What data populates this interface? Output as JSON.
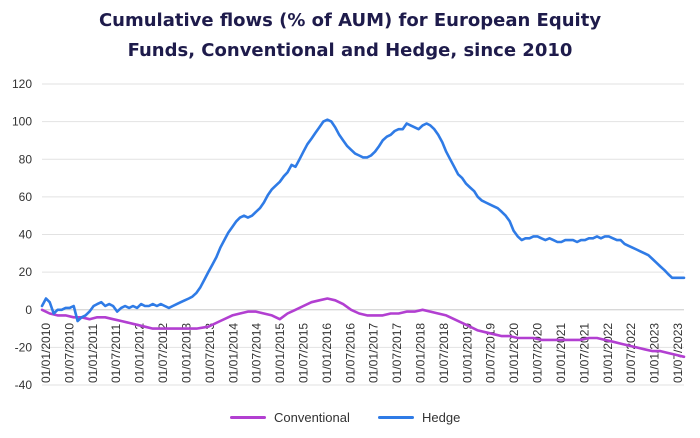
{
  "chart_data": {
    "type": "line",
    "title": [
      "Cumulative flows (% of AUM) for European Equity",
      "Funds, Conventional and Hedge, since 2010"
    ],
    "xlabel": "",
    "ylabel": "",
    "ylim": [
      -40,
      120
    ],
    "yticks": [
      -40,
      -20,
      0,
      20,
      40,
      60,
      80,
      100,
      120
    ],
    "grid": "horizontal",
    "legend_position": "bottom",
    "x_tick_labels": [
      "01/01/2010",
      "01/07/2010",
      "01/01/2011",
      "01/07/2011",
      "01/01/2012",
      "01/07/2012",
      "01/01/2013",
      "01/07/2013",
      "01/01/2014",
      "01/07/2014",
      "01/01/2015",
      "01/07/2015",
      "01/01/2016",
      "01/07/2016",
      "01/01/2017",
      "01/07/2017",
      "01/01/2018",
      "01/07/2018",
      "01/01/2019",
      "01/07/2019",
      "01/01/2020",
      "01/07/2020",
      "01/01/2021",
      "01/07/2021",
      "01/01/2022",
      "01/07/2022",
      "01/01/2023",
      "01/07/2023"
    ],
    "series": [
      {
        "name": "Conventional",
        "color": "#b23fd1",
        "points": [
          [
            "2010-01-01",
            0
          ],
          [
            "2010-03-01",
            -2
          ],
          [
            "2010-05-01",
            -3
          ],
          [
            "2010-07-01",
            -3
          ],
          [
            "2010-09-01",
            -4
          ],
          [
            "2010-11-01",
            -4
          ],
          [
            "2011-01-01",
            -5
          ],
          [
            "2011-03-01",
            -4
          ],
          [
            "2011-05-01",
            -4
          ],
          [
            "2011-07-01",
            -5
          ],
          [
            "2011-09-01",
            -6
          ],
          [
            "2011-11-01",
            -7
          ],
          [
            "2012-01-01",
            -8
          ],
          [
            "2012-03-01",
            -9
          ],
          [
            "2012-05-01",
            -10
          ],
          [
            "2012-07-01",
            -10
          ],
          [
            "2012-09-01",
            -10
          ],
          [
            "2012-11-01",
            -10
          ],
          [
            "2013-01-01",
            -10
          ],
          [
            "2013-04-01",
            -10
          ],
          [
            "2013-07-01",
            -9
          ],
          [
            "2013-10-01",
            -6
          ],
          [
            "2014-01-01",
            -3
          ],
          [
            "2014-03-01",
            -2
          ],
          [
            "2014-05-01",
            -1
          ],
          [
            "2014-07-01",
            -1
          ],
          [
            "2014-09-01",
            -2
          ],
          [
            "2014-11-01",
            -3
          ],
          [
            "2015-01-01",
            -5
          ],
          [
            "2015-03-01",
            -2
          ],
          [
            "2015-05-01",
            0
          ],
          [
            "2015-07-01",
            2
          ],
          [
            "2015-09-01",
            4
          ],
          [
            "2015-11-01",
            5
          ],
          [
            "2016-01-01",
            6
          ],
          [
            "2016-03-01",
            5
          ],
          [
            "2016-05-01",
            3
          ],
          [
            "2016-07-01",
            0
          ],
          [
            "2016-09-01",
            -2
          ],
          [
            "2016-11-01",
            -3
          ],
          [
            "2017-01-01",
            -3
          ],
          [
            "2017-03-01",
            -3
          ],
          [
            "2017-05-01",
            -2
          ],
          [
            "2017-07-01",
            -2
          ],
          [
            "2017-09-01",
            -1
          ],
          [
            "2017-11-01",
            -1
          ],
          [
            "2018-01-01",
            0
          ],
          [
            "2018-03-01",
            -1
          ],
          [
            "2018-05-01",
            -2
          ],
          [
            "2018-07-01",
            -3
          ],
          [
            "2018-09-01",
            -5
          ],
          [
            "2018-11-01",
            -7
          ],
          [
            "2019-01-01",
            -9
          ],
          [
            "2019-03-01",
            -11
          ],
          [
            "2019-05-01",
            -12
          ],
          [
            "2019-07-01",
            -13
          ],
          [
            "2019-09-01",
            -14
          ],
          [
            "2019-11-01",
            -14
          ],
          [
            "2020-01-01",
            -15
          ],
          [
            "2020-03-01",
            -15
          ],
          [
            "2020-05-01",
            -15
          ],
          [
            "2020-07-01",
            -16
          ],
          [
            "2020-09-01",
            -16
          ],
          [
            "2020-11-01",
            -16
          ],
          [
            "2021-01-01",
            -16
          ],
          [
            "2021-03-01",
            -16
          ],
          [
            "2021-05-01",
            -16
          ],
          [
            "2021-07-01",
            -15
          ],
          [
            "2021-09-01",
            -15
          ],
          [
            "2021-11-01",
            -16
          ],
          [
            "2022-01-01",
            -17
          ],
          [
            "2022-03-01",
            -18
          ],
          [
            "2022-05-01",
            -19
          ],
          [
            "2022-07-01",
            -20
          ],
          [
            "2022-09-01",
            -21
          ],
          [
            "2022-11-01",
            -22
          ],
          [
            "2023-01-01",
            -22
          ],
          [
            "2023-03-01",
            -23
          ],
          [
            "2023-05-01",
            -24
          ],
          [
            "2023-07-01",
            -25
          ]
        ]
      },
      {
        "name": "Hedge",
        "color": "#2f7be6",
        "points": [
          [
            "2010-01-01",
            2
          ],
          [
            "2010-02-01",
            6
          ],
          [
            "2010-03-01",
            4
          ],
          [
            "2010-04-01",
            -2
          ],
          [
            "2010-05-01",
            0
          ],
          [
            "2010-06-01",
            0
          ],
          [
            "2010-07-01",
            1
          ],
          [
            "2010-08-01",
            1
          ],
          [
            "2010-09-01",
            2
          ],
          [
            "2010-10-01",
            -6
          ],
          [
            "2010-11-01",
            -4
          ],
          [
            "2010-12-01",
            -3
          ],
          [
            "2011-01-01",
            -1
          ],
          [
            "2011-02-01",
            2
          ],
          [
            "2011-03-01",
            3
          ],
          [
            "2011-04-01",
            4
          ],
          [
            "2011-05-01",
            2
          ],
          [
            "2011-06-01",
            3
          ],
          [
            "2011-07-01",
            2
          ],
          [
            "2011-08-01",
            -1
          ],
          [
            "2011-09-01",
            1
          ],
          [
            "2011-10-01",
            2
          ],
          [
            "2011-11-01",
            1
          ],
          [
            "2011-12-01",
            2
          ],
          [
            "2012-01-01",
            1
          ],
          [
            "2012-02-01",
            3
          ],
          [
            "2012-03-01",
            2
          ],
          [
            "2012-04-01",
            2
          ],
          [
            "2012-05-01",
            3
          ],
          [
            "2012-06-01",
            2
          ],
          [
            "2012-07-01",
            3
          ],
          [
            "2012-08-01",
            2
          ],
          [
            "2012-09-01",
            1
          ],
          [
            "2012-10-01",
            2
          ],
          [
            "2012-11-01",
            3
          ],
          [
            "2012-12-01",
            4
          ],
          [
            "2013-01-01",
            5
          ],
          [
            "2013-02-01",
            6
          ],
          [
            "2013-03-01",
            7
          ],
          [
            "2013-04-01",
            9
          ],
          [
            "2013-05-01",
            12
          ],
          [
            "2013-06-01",
            16
          ],
          [
            "2013-07-01",
            20
          ],
          [
            "2013-08-01",
            24
          ],
          [
            "2013-09-01",
            28
          ],
          [
            "2013-10-01",
            33
          ],
          [
            "2013-11-01",
            37
          ],
          [
            "2013-12-01",
            41
          ],
          [
            "2014-01-01",
            44
          ],
          [
            "2014-02-01",
            47
          ],
          [
            "2014-03-01",
            49
          ],
          [
            "2014-04-01",
            50
          ],
          [
            "2014-05-01",
            49
          ],
          [
            "2014-06-01",
            50
          ],
          [
            "2014-07-01",
            52
          ],
          [
            "2014-08-01",
            54
          ],
          [
            "2014-09-01",
            57
          ],
          [
            "2014-10-01",
            61
          ],
          [
            "2014-11-01",
            64
          ],
          [
            "2014-12-01",
            66
          ],
          [
            "2015-01-01",
            68
          ],
          [
            "2015-02-01",
            71
          ],
          [
            "2015-03-01",
            73
          ],
          [
            "2015-04-01",
            77
          ],
          [
            "2015-05-01",
            76
          ],
          [
            "2015-06-01",
            80
          ],
          [
            "2015-07-01",
            84
          ],
          [
            "2015-08-01",
            88
          ],
          [
            "2015-09-01",
            91
          ],
          [
            "2015-10-01",
            94
          ],
          [
            "2015-11-01",
            97
          ],
          [
            "2015-12-01",
            100
          ],
          [
            "2016-01-01",
            101
          ],
          [
            "2016-02-01",
            100
          ],
          [
            "2016-03-01",
            97
          ],
          [
            "2016-04-01",
            93
          ],
          [
            "2016-05-01",
            90
          ],
          [
            "2016-06-01",
            87
          ],
          [
            "2016-07-01",
            85
          ],
          [
            "2016-08-01",
            83
          ],
          [
            "2016-09-01",
            82
          ],
          [
            "2016-10-01",
            81
          ],
          [
            "2016-11-01",
            81
          ],
          [
            "2016-12-01",
            82
          ],
          [
            "2017-01-01",
            84
          ],
          [
            "2017-02-01",
            87
          ],
          [
            "2017-03-01",
            90
          ],
          [
            "2017-04-01",
            92
          ],
          [
            "2017-05-01",
            93
          ],
          [
            "2017-06-01",
            95
          ],
          [
            "2017-07-01",
            96
          ],
          [
            "2017-08-01",
            96
          ],
          [
            "2017-09-01",
            99
          ],
          [
            "2017-10-01",
            98
          ],
          [
            "2017-11-01",
            97
          ],
          [
            "2017-12-01",
            96
          ],
          [
            "2018-01-01",
            98
          ],
          [
            "2018-02-01",
            99
          ],
          [
            "2018-03-01",
            98
          ],
          [
            "2018-04-01",
            96
          ],
          [
            "2018-05-01",
            93
          ],
          [
            "2018-06-01",
            89
          ],
          [
            "2018-07-01",
            84
          ],
          [
            "2018-08-01",
            80
          ],
          [
            "2018-09-01",
            76
          ],
          [
            "2018-10-01",
            72
          ],
          [
            "2018-11-01",
            70
          ],
          [
            "2018-12-01",
            67
          ],
          [
            "2019-01-01",
            65
          ],
          [
            "2019-02-01",
            63
          ],
          [
            "2019-03-01",
            60
          ],
          [
            "2019-04-01",
            58
          ],
          [
            "2019-05-01",
            57
          ],
          [
            "2019-06-01",
            56
          ],
          [
            "2019-07-01",
            55
          ],
          [
            "2019-08-01",
            54
          ],
          [
            "2019-09-01",
            52
          ],
          [
            "2019-10-01",
            50
          ],
          [
            "2019-11-01",
            47
          ],
          [
            "2019-12-01",
            42
          ],
          [
            "2020-01-01",
            39
          ],
          [
            "2020-02-01",
            37
          ],
          [
            "2020-03-01",
            38
          ],
          [
            "2020-04-01",
            38
          ],
          [
            "2020-05-01",
            39
          ],
          [
            "2020-06-01",
            39
          ],
          [
            "2020-07-01",
            38
          ],
          [
            "2020-08-01",
            37
          ],
          [
            "2020-09-01",
            38
          ],
          [
            "2020-10-01",
            37
          ],
          [
            "2020-11-01",
            36
          ],
          [
            "2020-12-01",
            36
          ],
          [
            "2021-01-01",
            37
          ],
          [
            "2021-02-01",
            37
          ],
          [
            "2021-03-01",
            37
          ],
          [
            "2021-04-01",
            36
          ],
          [
            "2021-05-01",
            37
          ],
          [
            "2021-06-01",
            37
          ],
          [
            "2021-07-01",
            38
          ],
          [
            "2021-08-01",
            38
          ],
          [
            "2021-09-01",
            39
          ],
          [
            "2021-10-01",
            38
          ],
          [
            "2021-11-01",
            39
          ],
          [
            "2021-12-01",
            39
          ],
          [
            "2022-01-01",
            38
          ],
          [
            "2022-02-01",
            37
          ],
          [
            "2022-03-01",
            37
          ],
          [
            "2022-04-01",
            35
          ],
          [
            "2022-05-01",
            34
          ],
          [
            "2022-06-01",
            33
          ],
          [
            "2022-07-01",
            32
          ],
          [
            "2022-08-01",
            31
          ],
          [
            "2022-09-01",
            30
          ],
          [
            "2022-10-01",
            29
          ],
          [
            "2022-11-01",
            27
          ],
          [
            "2022-12-01",
            25
          ],
          [
            "2023-01-01",
            23
          ],
          [
            "2023-02-01",
            21
          ],
          [
            "2023-03-01",
            19
          ],
          [
            "2023-04-01",
            17
          ],
          [
            "2023-05-01",
            17
          ],
          [
            "2023-07-01",
            17
          ]
        ]
      }
    ]
  }
}
